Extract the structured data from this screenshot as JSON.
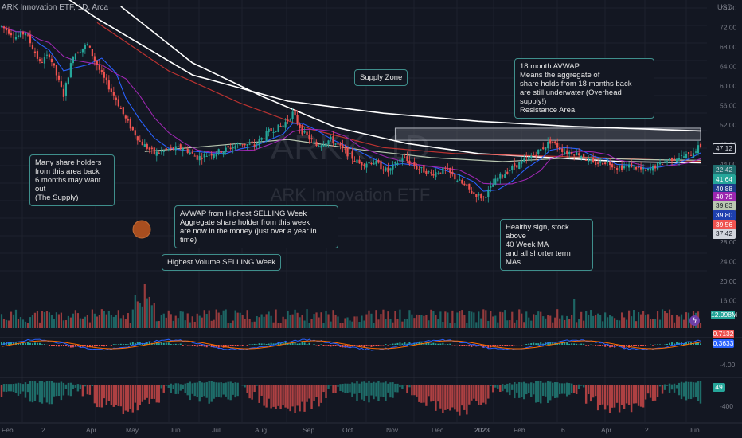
{
  "header": {
    "symbol_line": "ARK Innovation ETF, 1D, Arca",
    "currency": "USD"
  },
  "watermark": {
    "ticker": "ARKK, 1D",
    "name": "ARK Innovation ETF"
  },
  "annotations": {
    "supply_zone": "Supply Zone",
    "avwap_18m": "18 month AVWAP\nMeans the aggregate of\nshare holds from 18 months back\nare still underwater (Overhead supply!)\nResistance Area",
    "many_holders": "Many share holders\nfrom this area back\n6 months may want out\n(The Supply)",
    "avwap_selling": "AVWAP from Highest SELLING Week\nAggregate share holder from this week\nare now in the money (just over a year in time)",
    "highest_volume": "Highest Volume SELLING Week",
    "healthy_sign": "Healthy sign, stock above\n40 Week MA\nand all shorter term MAs"
  },
  "price_tags": [
    {
      "label": "47.12",
      "bg": "#131722",
      "fg": "#d1d4dc",
      "border": "#d1d4dc"
    },
    {
      "label": "22:42",
      "bg": "#1f6f6f",
      "fg": "#d1d4dc",
      "border": "#1f6f6f"
    },
    {
      "label": "41.64",
      "bg": "#26a69a",
      "fg": "#ffffff",
      "border": "#26a69a"
    },
    {
      "label": "40.88",
      "bg": "#1e3a8a",
      "fg": "#ffffff",
      "border": "#1e3a8a"
    },
    {
      "label": "40.79",
      "bg": "#9c27b0",
      "fg": "#ffffff",
      "border": "#9c27b0"
    },
    {
      "label": "39.83",
      "bg": "#b9c7b1",
      "fg": "#131722",
      "border": "#b9c7b1"
    },
    {
      "label": "39.80",
      "bg": "#1e40af",
      "fg": "#ffffff",
      "border": "#1e40af"
    },
    {
      "label": "39.56",
      "bg": "#ef5350",
      "fg": "#ffffff",
      "border": "#ef5350"
    },
    {
      "label": "37.42",
      "bg": "#d1d4dc",
      "fg": "#131722",
      "border": "#d1d4dc"
    }
  ],
  "volume_tag": {
    "label": "12.998M",
    "bg": "#26a69a"
  },
  "macd_tags": [
    {
      "label": "0.7132",
      "bg": "#ef5350"
    },
    {
      "label": "0.3633",
      "bg": "#2962ff"
    }
  ],
  "osc_tag": {
    "label": "49",
    "bg": "#26a69a"
  },
  "colors": {
    "up": "#26a69a",
    "down": "#ef5350",
    "bg": "#131722",
    "grid": "#1e222d",
    "ma_white": "#ffffff",
    "ma_red": "#e53935",
    "ma_blue": "#2962ff",
    "ma_purple": "#9c27b0",
    "avwap_light": "#b9c7b1"
  },
  "chart_data": {
    "type": "line",
    "title": "ARK Innovation ETF, 1D, Arca",
    "price_axis_ticks": [
      "76.00",
      "72.00",
      "68.00",
      "64.00",
      "60.00",
      "56.00",
      "52.00",
      "48.00",
      "44.00",
      "40.00",
      "36.00",
      "32.00",
      "28.00",
      "24.00",
      "20.00",
      "16.00"
    ],
    "macd_axis_ticks": [
      "4.00",
      "0.00",
      "-4.00"
    ],
    "osc_axis_ticks": [
      "-400"
    ],
    "time_axis_ticks": [
      "Feb",
      "2",
      "Apr",
      "May",
      "Jun",
      "Jul",
      "Aug",
      "Sep",
      "Oct",
      "Nov",
      "Dec",
      "2023",
      "Feb",
      "6",
      "Apr",
      "2",
      "Jun"
    ],
    "ylim": [
      16,
      78
    ],
    "supply_zone": [
      44.8,
      47.8
    ],
    "price_path": [
      [
        0,
        73.0
      ],
      [
        6,
        70.5
      ],
      [
        10,
        71.5
      ],
      [
        16,
        64.0
      ],
      [
        20,
        66.0
      ],
      [
        26,
        56.0
      ],
      [
        30,
        66.0
      ],
      [
        36,
        68.5
      ],
      [
        42,
        61.0
      ],
      [
        48,
        55.0
      ],
      [
        52,
        50.0
      ],
      [
        58,
        44.5
      ],
      [
        64,
        41.5
      ],
      [
        70,
        42.5
      ],
      [
        76,
        43.0
      ],
      [
        82,
        40.5
      ],
      [
        88,
        41.5
      ],
      [
        94,
        42.5
      ],
      [
        100,
        44.0
      ],
      [
        106,
        43.5
      ],
      [
        112,
        47.0
      ],
      [
        118,
        48.5
      ],
      [
        122,
        51.5
      ],
      [
        126,
        47.0
      ],
      [
        132,
        43.5
      ],
      [
        138,
        45.0
      ],
      [
        144,
        42.0
      ],
      [
        150,
        39.0
      ],
      [
        156,
        39.5
      ],
      [
        162,
        37.0
      ],
      [
        168,
        40.5
      ],
      [
        174,
        38.0
      ],
      [
        180,
        36.5
      ],
      [
        186,
        37.5
      ],
      [
        192,
        34.5
      ],
      [
        198,
        31.5
      ],
      [
        202,
        30.5
      ],
      [
        208,
        35.5
      ],
      [
        214,
        38.0
      ],
      [
        220,
        40.0
      ],
      [
        226,
        42.5
      ],
      [
        230,
        44.5
      ],
      [
        236,
        42.0
      ],
      [
        242,
        41.5
      ],
      [
        248,
        39.0
      ],
      [
        254,
        39.5
      ],
      [
        258,
        38.0
      ],
      [
        264,
        38.5
      ],
      [
        270,
        37.0
      ],
      [
        276,
        39.0
      ],
      [
        282,
        40.5
      ],
      [
        288,
        41.0
      ],
      [
        293,
        43.5
      ]
    ],
    "series": [
      {
        "name": "AVWAP 18 month",
        "color": "#ffffff",
        "values": [
          [
            0,
            91.0
          ],
          [
            40,
            75.0
          ],
          [
            80,
            61.0
          ],
          [
            120,
            54.5
          ],
          [
            160,
            51.5
          ],
          [
            200,
            49.5
          ],
          [
            240,
            48.2
          ],
          [
            293,
            47.12
          ]
        ]
      },
      {
        "name": "200 MA",
        "color": "#ffffff",
        "values": [
          [
            50,
            78.0
          ],
          [
            80,
            64.0
          ],
          [
            110,
            55.5
          ],
          [
            140,
            48.0
          ],
          [
            170,
            44.0
          ],
          [
            200,
            41.5
          ],
          [
            230,
            40.5
          ],
          [
            260,
            39.5
          ],
          [
            293,
            39.2
          ]
        ]
      },
      {
        "name": "40 Week MA",
        "color": "#e53935",
        "values": [
          [
            40,
            74.0
          ],
          [
            70,
            62.0
          ],
          [
            100,
            54.0
          ],
          [
            130,
            47.5
          ],
          [
            160,
            43.0
          ],
          [
            190,
            41.5
          ],
          [
            220,
            41.0
          ],
          [
            250,
            40.5
          ],
          [
            293,
            39.56
          ]
        ]
      },
      {
        "name": "AVWAP Highest SELLING Week",
        "color": "#b9c7b1",
        "values": [
          [
            60,
            42.0
          ],
          [
            90,
            43.5
          ],
          [
            120,
            45.0
          ],
          [
            150,
            42.5
          ],
          [
            180,
            40.5
          ],
          [
            210,
            39.5
          ],
          [
            240,
            40.5
          ],
          [
            270,
            40.0
          ],
          [
            293,
            39.83
          ]
        ]
      }
    ],
    "volume_axis_ticks": [
      "24.00",
      "20.00",
      "16.00"
    ]
  }
}
